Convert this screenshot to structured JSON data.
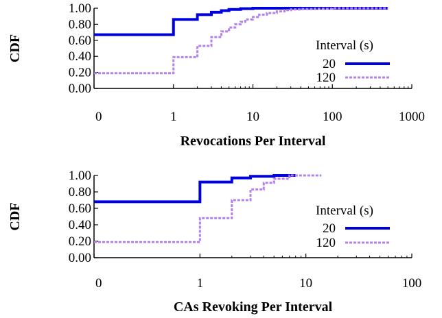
{
  "chart_data": [
    {
      "type": "line",
      "subtype": "step-cdf",
      "title": "",
      "xlabel": "Revocations Per Interval",
      "ylabel": "CDF",
      "xscale": "symlog",
      "xlim": [
        0,
        1000
      ],
      "ylim": [
        0,
        1.0
      ],
      "x_ticks": [
        0,
        1,
        10,
        100,
        1000
      ],
      "x_tick_labels": [
        "0",
        "1",
        "10",
        "100",
        "1000"
      ],
      "y_ticks": [
        0,
        0.2,
        0.4,
        0.6,
        0.8,
        1.0
      ],
      "y_tick_labels": [
        "0.00",
        "0.20",
        "0.40",
        "0.60",
        "0.80",
        "1.00"
      ],
      "legend": {
        "title": "Interval (s)",
        "position": "right"
      },
      "series": [
        {
          "name": "20",
          "color": "#0000dd",
          "style": "solid",
          "x": [
            0,
            1,
            2,
            3,
            4,
            5,
            7,
            10,
            20,
            500
          ],
          "y": [
            0.67,
            0.86,
            0.92,
            0.95,
            0.97,
            0.985,
            0.995,
            1.0,
            1.0,
            1.0
          ]
        },
        {
          "name": "120",
          "color": "#b380ee",
          "style": "dashed",
          "x": [
            0,
            1,
            2,
            3,
            4,
            5,
            6,
            7,
            8,
            10,
            12,
            15,
            20,
            25,
            30,
            40,
            60,
            100,
            500
          ],
          "y": [
            0.19,
            0.39,
            0.53,
            0.64,
            0.71,
            0.76,
            0.8,
            0.83,
            0.86,
            0.89,
            0.92,
            0.94,
            0.96,
            0.975,
            0.985,
            0.99,
            0.995,
            1.0,
            1.0
          ]
        }
      ]
    },
    {
      "type": "line",
      "subtype": "step-cdf",
      "title": "",
      "xlabel": "CAs Revoking Per Interval",
      "ylabel": "CDF",
      "xscale": "symlog",
      "xlim": [
        0,
        100
      ],
      "ylim": [
        0,
        1.0
      ],
      "x_ticks": [
        0,
        1,
        10,
        100
      ],
      "x_tick_labels": [
        "0",
        "1",
        "10",
        "100"
      ],
      "y_ticks": [
        0,
        0.2,
        0.4,
        0.6,
        0.8,
        1.0
      ],
      "y_tick_labels": [
        "0.00",
        "0.20",
        "0.40",
        "0.60",
        "0.80",
        "1.00"
      ],
      "legend": {
        "title": "Interval (s)",
        "position": "right"
      },
      "series": [
        {
          "name": "20",
          "color": "#0000dd",
          "style": "solid",
          "x": [
            0,
            1,
            2,
            3,
            5,
            8
          ],
          "y": [
            0.68,
            0.92,
            0.97,
            0.99,
            1.0,
            1.0
          ]
        },
        {
          "name": "120",
          "color": "#b380ee",
          "style": "dashed",
          "x": [
            0,
            1,
            2,
            3,
            4,
            5,
            7,
            14
          ],
          "y": [
            0.19,
            0.48,
            0.7,
            0.83,
            0.91,
            0.96,
            1.0,
            1.0
          ]
        }
      ]
    }
  ]
}
